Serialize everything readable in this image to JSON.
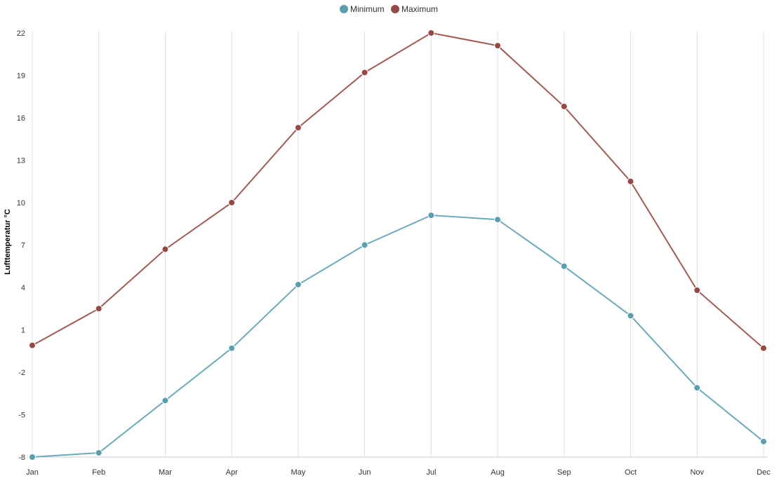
{
  "chart_data": {
    "type": "line",
    "categories": [
      "Jan",
      "Feb",
      "Mar",
      "Apr",
      "May",
      "Jun",
      "Jul",
      "Aug",
      "Sep",
      "Oct",
      "Nov",
      "Dec"
    ],
    "series": [
      {
        "name": "Minimum",
        "color": "#6aabbb",
        "marker_color": "#5a9fb0",
        "values": [
          -8.0,
          -7.7,
          -4.0,
          -0.3,
          4.2,
          7.0,
          9.1,
          8.8,
          5.5,
          2.0,
          -3.1,
          -6.9
        ]
      },
      {
        "name": "Maximum",
        "color": "#a45a52",
        "marker_color": "#984842",
        "values": [
          -0.1,
          2.5,
          6.7,
          10.0,
          15.3,
          19.2,
          22.0,
          21.1,
          16.8,
          11.5,
          3.8,
          -0.3
        ]
      }
    ],
    "ylabel": "Lufttemperatur °C",
    "xlabel": "",
    "ylim": [
      -8,
      22
    ],
    "yticks": [
      -8,
      -5,
      -2,
      1,
      4,
      7,
      10,
      13,
      16,
      19,
      22
    ],
    "grid": "vertical",
    "legend_position": "top-center"
  }
}
